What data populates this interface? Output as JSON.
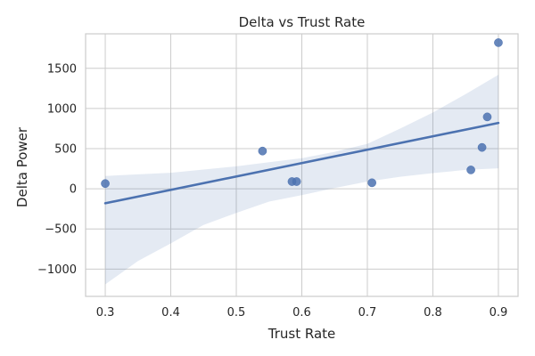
{
  "chart_data": {
    "type": "scatter",
    "title": "Delta vs Trust Rate",
    "xlabel": "Trust Rate",
    "ylabel": "Delta Power",
    "xlim": [
      0.27,
      0.93
    ],
    "ylim": [
      -1340,
      1930
    ],
    "xticks": [
      0.3,
      0.4,
      0.5,
      0.6,
      0.7,
      0.8,
      0.9
    ],
    "xtick_labels": [
      "0.3",
      "0.4",
      "0.5",
      "0.6",
      "0.7",
      "0.8",
      "0.9"
    ],
    "yticks": [
      -1000,
      -500,
      0,
      500,
      1000,
      1500
    ],
    "ytick_labels": [
      "−1000",
      "−500",
      "0",
      "500",
      "1000",
      "1500"
    ],
    "grid": true,
    "points": {
      "x": [
        0.3,
        0.54,
        0.585,
        0.592,
        0.707,
        0.858,
        0.875,
        0.883,
        0.9
      ],
      "y": [
        65,
        470,
        90,
        90,
        75,
        235,
        515,
        895,
        1820
      ]
    },
    "regression": {
      "x": [
        0.3,
        0.9
      ],
      "y": [
        -180,
        820
      ]
    },
    "confidence_band": {
      "x": [
        0.3,
        0.35,
        0.4,
        0.45,
        0.5,
        0.55,
        0.6,
        0.65,
        0.7,
        0.75,
        0.8,
        0.85,
        0.9
      ],
      "lower": [
        -1190,
        -900,
        -680,
        -450,
        -300,
        -160,
        -80,
        10,
        90,
        150,
        195,
        235,
        255
      ],
      "upper": [
        160,
        180,
        200,
        240,
        280,
        330,
        380,
        460,
        560,
        750,
        950,
        1180,
        1420
      ]
    },
    "colors": {
      "points": "#4c72b0",
      "line": "#4c72b0",
      "band": "#4c72b0",
      "grid": "#cccccc",
      "frame": "#cccccc"
    }
  }
}
